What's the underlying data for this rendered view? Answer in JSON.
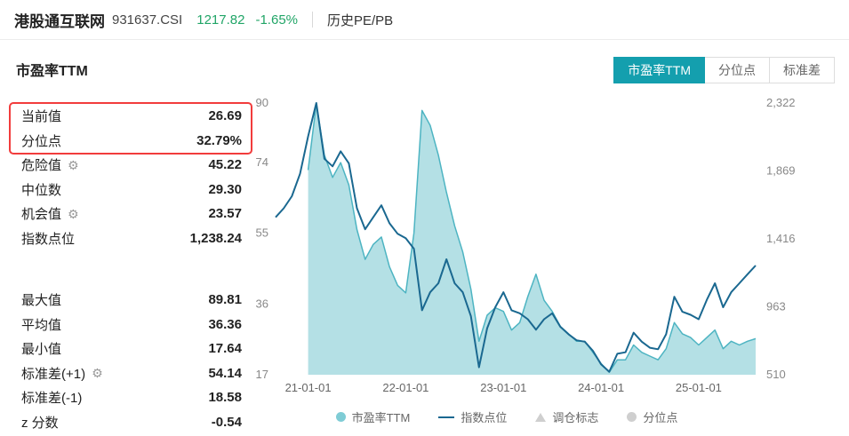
{
  "header": {
    "index_name": "港股通互联网",
    "index_code": "931637.CSI",
    "price": "1217.82",
    "change": "-1.65%",
    "nav_label": "历史PE/PB"
  },
  "section_title": "市盈率TTM",
  "tabs": [
    {
      "label": "市盈率TTM",
      "active": true
    },
    {
      "label": "分位点",
      "active": false
    },
    {
      "label": "标准差",
      "active": false
    }
  ],
  "stats": {
    "rows": [
      {
        "label": "当前值",
        "value": "26.69",
        "highlighted": true
      },
      {
        "label": "分位点",
        "value": "32.79%",
        "highlighted": true
      },
      {
        "label": "危险值",
        "value": "45.22",
        "gear": true
      },
      {
        "label": "中位数",
        "value": "29.30"
      },
      {
        "label": "机会值",
        "value": "23.57",
        "gear": true
      },
      {
        "label": "指数点位",
        "value": "1,238.24"
      },
      {
        "label": "最大值",
        "value": "89.81"
      },
      {
        "label": "平均值",
        "value": "36.36"
      },
      {
        "label": "最小值",
        "value": "17.64"
      },
      {
        "label": "标准差(+1)",
        "value": "54.14",
        "gear": true
      },
      {
        "label": "标准差(-1)",
        "value": "18.58"
      },
      {
        "label": "z 分数",
        "value": "-0.54"
      }
    ]
  },
  "legend": [
    {
      "label": "市盈率TTM",
      "symbol": "circle",
      "color": "#7fccd5"
    },
    {
      "label": "指数点位",
      "symbol": "line",
      "color": "#1a6890"
    },
    {
      "label": "调仓标志",
      "symbol": "triangle",
      "color": "#cfcfcf"
    },
    {
      "label": "分位点",
      "symbol": "dot",
      "color": "#cfcfcf"
    }
  ],
  "colors": {
    "accent_teal": "#149fae",
    "quote_green": "#21a567",
    "highlight_red": "#f23c3c",
    "pe_area_fill": "#a7dbe1",
    "pe_area_stroke": "#4db4c2",
    "index_line": "#1a6890"
  },
  "chart_data": {
    "type": "area+line",
    "title": "市盈率TTM",
    "grid": false,
    "legend_position": "bottom",
    "x_unit": "month",
    "x": [
      "2020-09",
      "2020-10",
      "2020-11",
      "2020-12",
      "2021-01",
      "2021-02",
      "2021-03",
      "2021-04",
      "2021-05",
      "2021-06",
      "2021-07",
      "2021-08",
      "2021-09",
      "2021-10",
      "2021-11",
      "2021-12",
      "2022-01",
      "2022-02",
      "2022-03",
      "2022-04",
      "2022-05",
      "2022-06",
      "2022-07",
      "2022-08",
      "2022-09",
      "2022-10",
      "2022-11",
      "2022-12",
      "2023-01",
      "2023-02",
      "2023-03",
      "2023-04",
      "2023-05",
      "2023-06",
      "2023-07",
      "2023-08",
      "2023-09",
      "2023-10",
      "2023-11",
      "2023-12",
      "2024-01",
      "2024-02",
      "2024-03",
      "2024-04",
      "2024-05",
      "2024-06",
      "2024-07",
      "2024-08",
      "2024-09",
      "2024-10",
      "2024-11",
      "2024-12",
      "2025-01",
      "2025-02",
      "2025-03",
      "2025-04",
      "2025-05",
      "2025-06",
      "2025-07",
      "2025-08"
    ],
    "series": [
      {
        "name": "市盈率TTM",
        "axis": "left",
        "type": "area",
        "color": "#4db4c2",
        "fill": "#a7dbe1",
        "current": 26.69,
        "values": [
          null,
          null,
          null,
          null,
          72,
          89.81,
          76,
          70,
          74,
          68,
          56,
          48,
          52,
          54,
          46,
          41,
          39,
          55,
          88,
          84,
          76,
          66,
          57,
          50,
          40,
          26,
          33,
          35,
          34,
          29,
          31,
          38,
          44,
          37,
          34,
          30,
          28,
          26,
          26,
          23,
          20,
          17.64,
          21,
          21,
          25,
          23,
          22,
          21,
          24,
          31,
          28,
          27,
          25,
          27,
          29,
          24,
          26,
          25,
          26,
          26.69
        ]
      },
      {
        "name": "指数点位",
        "axis": "right",
        "type": "line",
        "color": "#1a6890",
        "current": 1238.24,
        "values": [
          1560,
          1620,
          1700,
          1850,
          2100,
          2322,
          1950,
          1900,
          2000,
          1920,
          1620,
          1480,
          1560,
          1640,
          1520,
          1450,
          1420,
          1350,
          940,
          1060,
          1120,
          1280,
          1120,
          1060,
          900,
          560,
          820,
          960,
          1060,
          940,
          920,
          880,
          810,
          880,
          920,
          830,
          780,
          740,
          730,
          670,
          580,
          530,
          650,
          660,
          790,
          730,
          690,
          680,
          780,
          1030,
          930,
          910,
          880,
          1010,
          1120,
          960,
          1060,
          1120,
          1180,
          1238.24
        ]
      }
    ],
    "left_axis": {
      "label": "市盈率TTM",
      "min": 17,
      "max": 90,
      "ticks": [
        90,
        74,
        55,
        36,
        17
      ]
    },
    "right_axis": {
      "label": "指数点位",
      "min": 510,
      "max": 2322,
      "ticks": [
        "2,322",
        "1,869",
        "1,416",
        "963",
        "510"
      ],
      "tick_values": [
        2322,
        1869,
        1416,
        963,
        510
      ]
    },
    "x_ticks": [
      {
        "label": "21-01-01",
        "month": "2021-01"
      },
      {
        "label": "22-01-01",
        "month": "2022-01"
      },
      {
        "label": "23-01-01",
        "month": "2023-01"
      },
      {
        "label": "24-01-01",
        "month": "2024-01"
      },
      {
        "label": "25-01-01",
        "month": "2025-01"
      }
    ]
  }
}
